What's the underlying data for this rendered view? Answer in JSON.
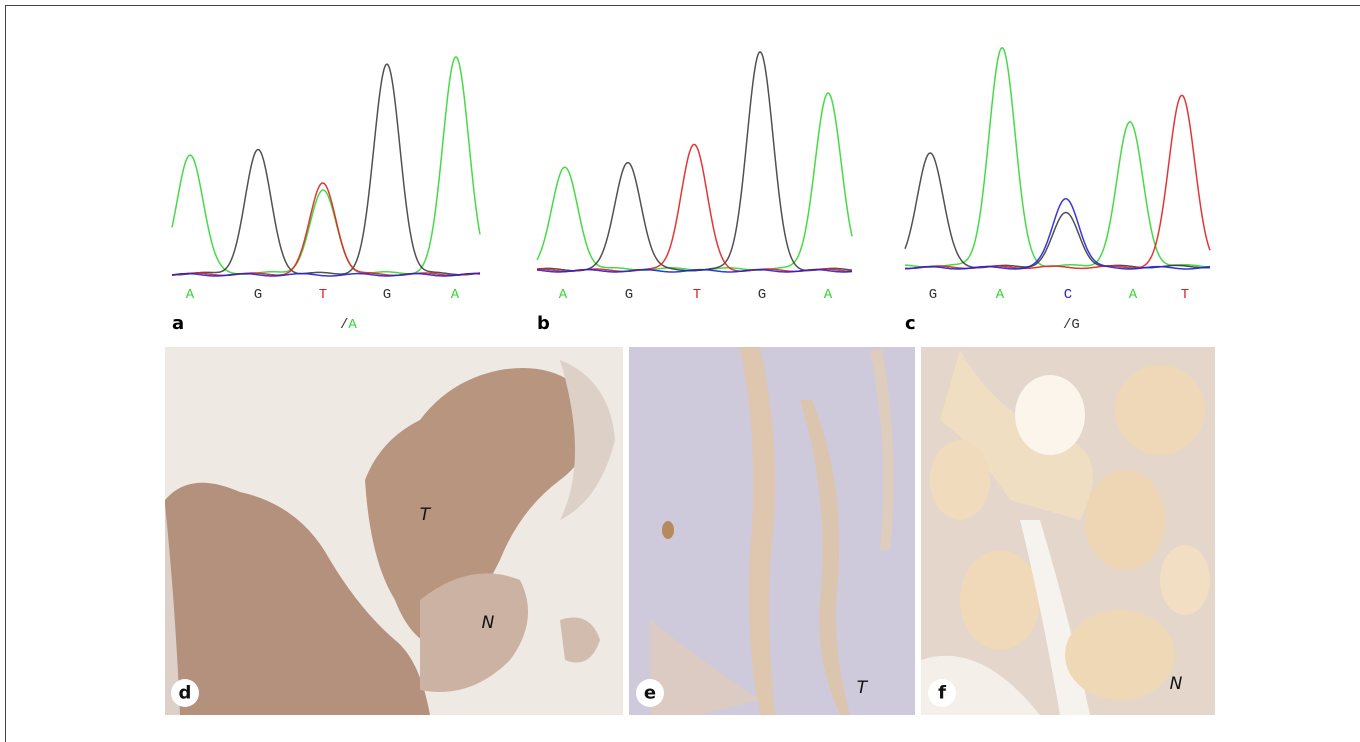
{
  "base_colors": {
    "A": "#33d633",
    "G": "#333333",
    "T": "#e02020",
    "C": "#2020e0"
  },
  "chromatograms": [
    {
      "label": "a",
      "bases": [
        "A",
        "G",
        "T",
        "G",
        "A"
      ],
      "note": {
        "slash": "/",
        "base": "A"
      }
    },
    {
      "label": "b",
      "bases": [
        "A",
        "G",
        "T",
        "G",
        "A"
      ]
    },
    {
      "label": "c",
      "bases": [
        "G",
        "A",
        "C",
        "A",
        "T"
      ],
      "note": {
        "slash": "/",
        "base": "G"
      }
    }
  ],
  "images": [
    {
      "label": "d",
      "annotations": [
        "T",
        "N"
      ]
    },
    {
      "label": "e",
      "annotations": [
        "T"
      ]
    },
    {
      "label": "f",
      "annotations": [
        "N"
      ]
    }
  ]
}
